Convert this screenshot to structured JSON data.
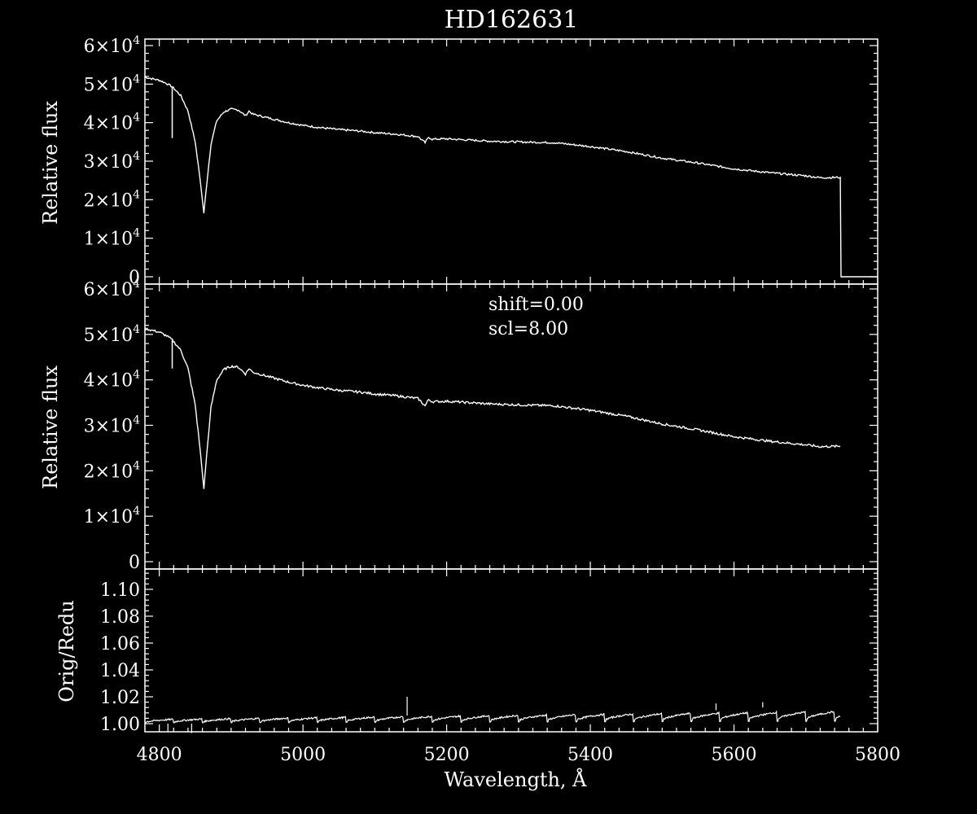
{
  "chart_data": [
    {
      "type": "line",
      "title": "HD162631",
      "ylabel": "Relative flux",
      "xlim": [
        4780,
        5800
      ],
      "ylim": [
        0,
        60000
      ],
      "yticks": [
        {
          "value": 0,
          "mant": "0",
          "exp": ""
        },
        {
          "value": 10000,
          "mant": "1×10",
          "exp": "4"
        },
        {
          "value": 20000,
          "mant": "2×10",
          "exp": "4"
        },
        {
          "value": 30000,
          "mant": "3×10",
          "exp": "4"
        },
        {
          "value": 40000,
          "mant": "4×10",
          "exp": "4"
        },
        {
          "value": 50000,
          "mant": "5×10",
          "exp": "4"
        },
        {
          "value": 60000,
          "mant": "6×10",
          "exp": "4"
        }
      ],
      "series": [
        {
          "x": [
            4780,
            4800,
            4810,
            4818,
            4830,
            4840,
            4850,
            4857,
            4862,
            4866,
            4872,
            4880,
            4890,
            4900,
            4910,
            4920,
            4925,
            4930,
            4950,
            4980,
            5000,
            5020,
            5050,
            5080,
            5100,
            5130,
            5160,
            5170,
            5175,
            5180,
            5200,
            5230,
            5260,
            5300,
            5350,
            5400,
            5450,
            5500,
            5550,
            5600,
            5650,
            5700,
            5720,
            5748,
            5749,
            5760,
            5800
          ],
          "y": [
            51800,
            51000,
            50200,
            49300,
            47000,
            43000,
            35000,
            25000,
            16500,
            24000,
            34500,
            40500,
            42800,
            43500,
            43300,
            41800,
            43000,
            42200,
            41300,
            40000,
            39300,
            38800,
            38200,
            37800,
            37400,
            37000,
            36400,
            34800,
            36200,
            35700,
            35800,
            35500,
            35200,
            35000,
            34800,
            33800,
            32500,
            30800,
            29500,
            28000,
            27000,
            26200,
            25700,
            25800,
            0,
            0,
            0
          ]
        }
      ],
      "spikes": [
        {
          "x": 4818,
          "y_from": 49300,
          "y_to": 36000
        }
      ]
    },
    {
      "type": "line",
      "ylabel": "Relative flux",
      "xlim": [
        4780,
        5800
      ],
      "ylim": [
        0,
        60000
      ],
      "annotations": [
        "shift=0.00",
        "scl=8.00"
      ],
      "yticks": [
        {
          "value": 0,
          "mant": "0",
          "exp": ""
        },
        {
          "value": 10000,
          "mant": "1×10",
          "exp": "4"
        },
        {
          "value": 20000,
          "mant": "2×10",
          "exp": "4"
        },
        {
          "value": 30000,
          "mant": "3×10",
          "exp": "4"
        },
        {
          "value": 40000,
          "mant": "4×10",
          "exp": "4"
        },
        {
          "value": 50000,
          "mant": "5×10",
          "exp": "4"
        },
        {
          "value": 60000,
          "mant": "6×10",
          "exp": "4"
        }
      ],
      "series": [
        {
          "x": [
            4780,
            4800,
            4810,
            4818,
            4830,
            4840,
            4850,
            4857,
            4862,
            4866,
            4872,
            4880,
            4890,
            4900,
            4910,
            4920,
            4925,
            4930,
            4950,
            4980,
            5000,
            5020,
            5050,
            5080,
            5100,
            5130,
            5160,
            5170,
            5175,
            5180,
            5200,
            5230,
            5260,
            5300,
            5350,
            5400,
            5450,
            5500,
            5550,
            5600,
            5650,
            5700,
            5720,
            5748
          ],
          "y": [
            51300,
            50500,
            49700,
            48800,
            46500,
            42500,
            34500,
            24500,
            16000,
            23500,
            34000,
            40000,
            42300,
            43000,
            42800,
            41300,
            42500,
            41700,
            40800,
            39500,
            38800,
            38300,
            37700,
            37300,
            36900,
            36500,
            35900,
            34300,
            35700,
            35200,
            35300,
            35000,
            34700,
            34500,
            34300,
            33300,
            32000,
            30300,
            29000,
            27500,
            26500,
            25700,
            25300,
            25400
          ]
        }
      ],
      "spikes": [
        {
          "x": 4818,
          "y_from": 48800,
          "y_to": 42500
        }
      ]
    },
    {
      "type": "line",
      "xlabel": "Wavelength, Å",
      "ylabel": "Orig/Redu",
      "xlim": [
        4780,
        5800
      ],
      "ylim": [
        0.99,
        1.12
      ],
      "xticks": [
        "4800",
        "5000",
        "5200",
        "5400",
        "5600",
        "5800"
      ],
      "yticks": [
        "1.00",
        "1.02",
        "1.04",
        "1.06",
        "1.08",
        "1.10"
      ],
      "series": [
        {
          "x_start": 4780,
          "x_end": 5748,
          "segment_width": 40,
          "note_values_range": [
            1.0,
            1.011
          ]
        }
      ]
    }
  ]
}
